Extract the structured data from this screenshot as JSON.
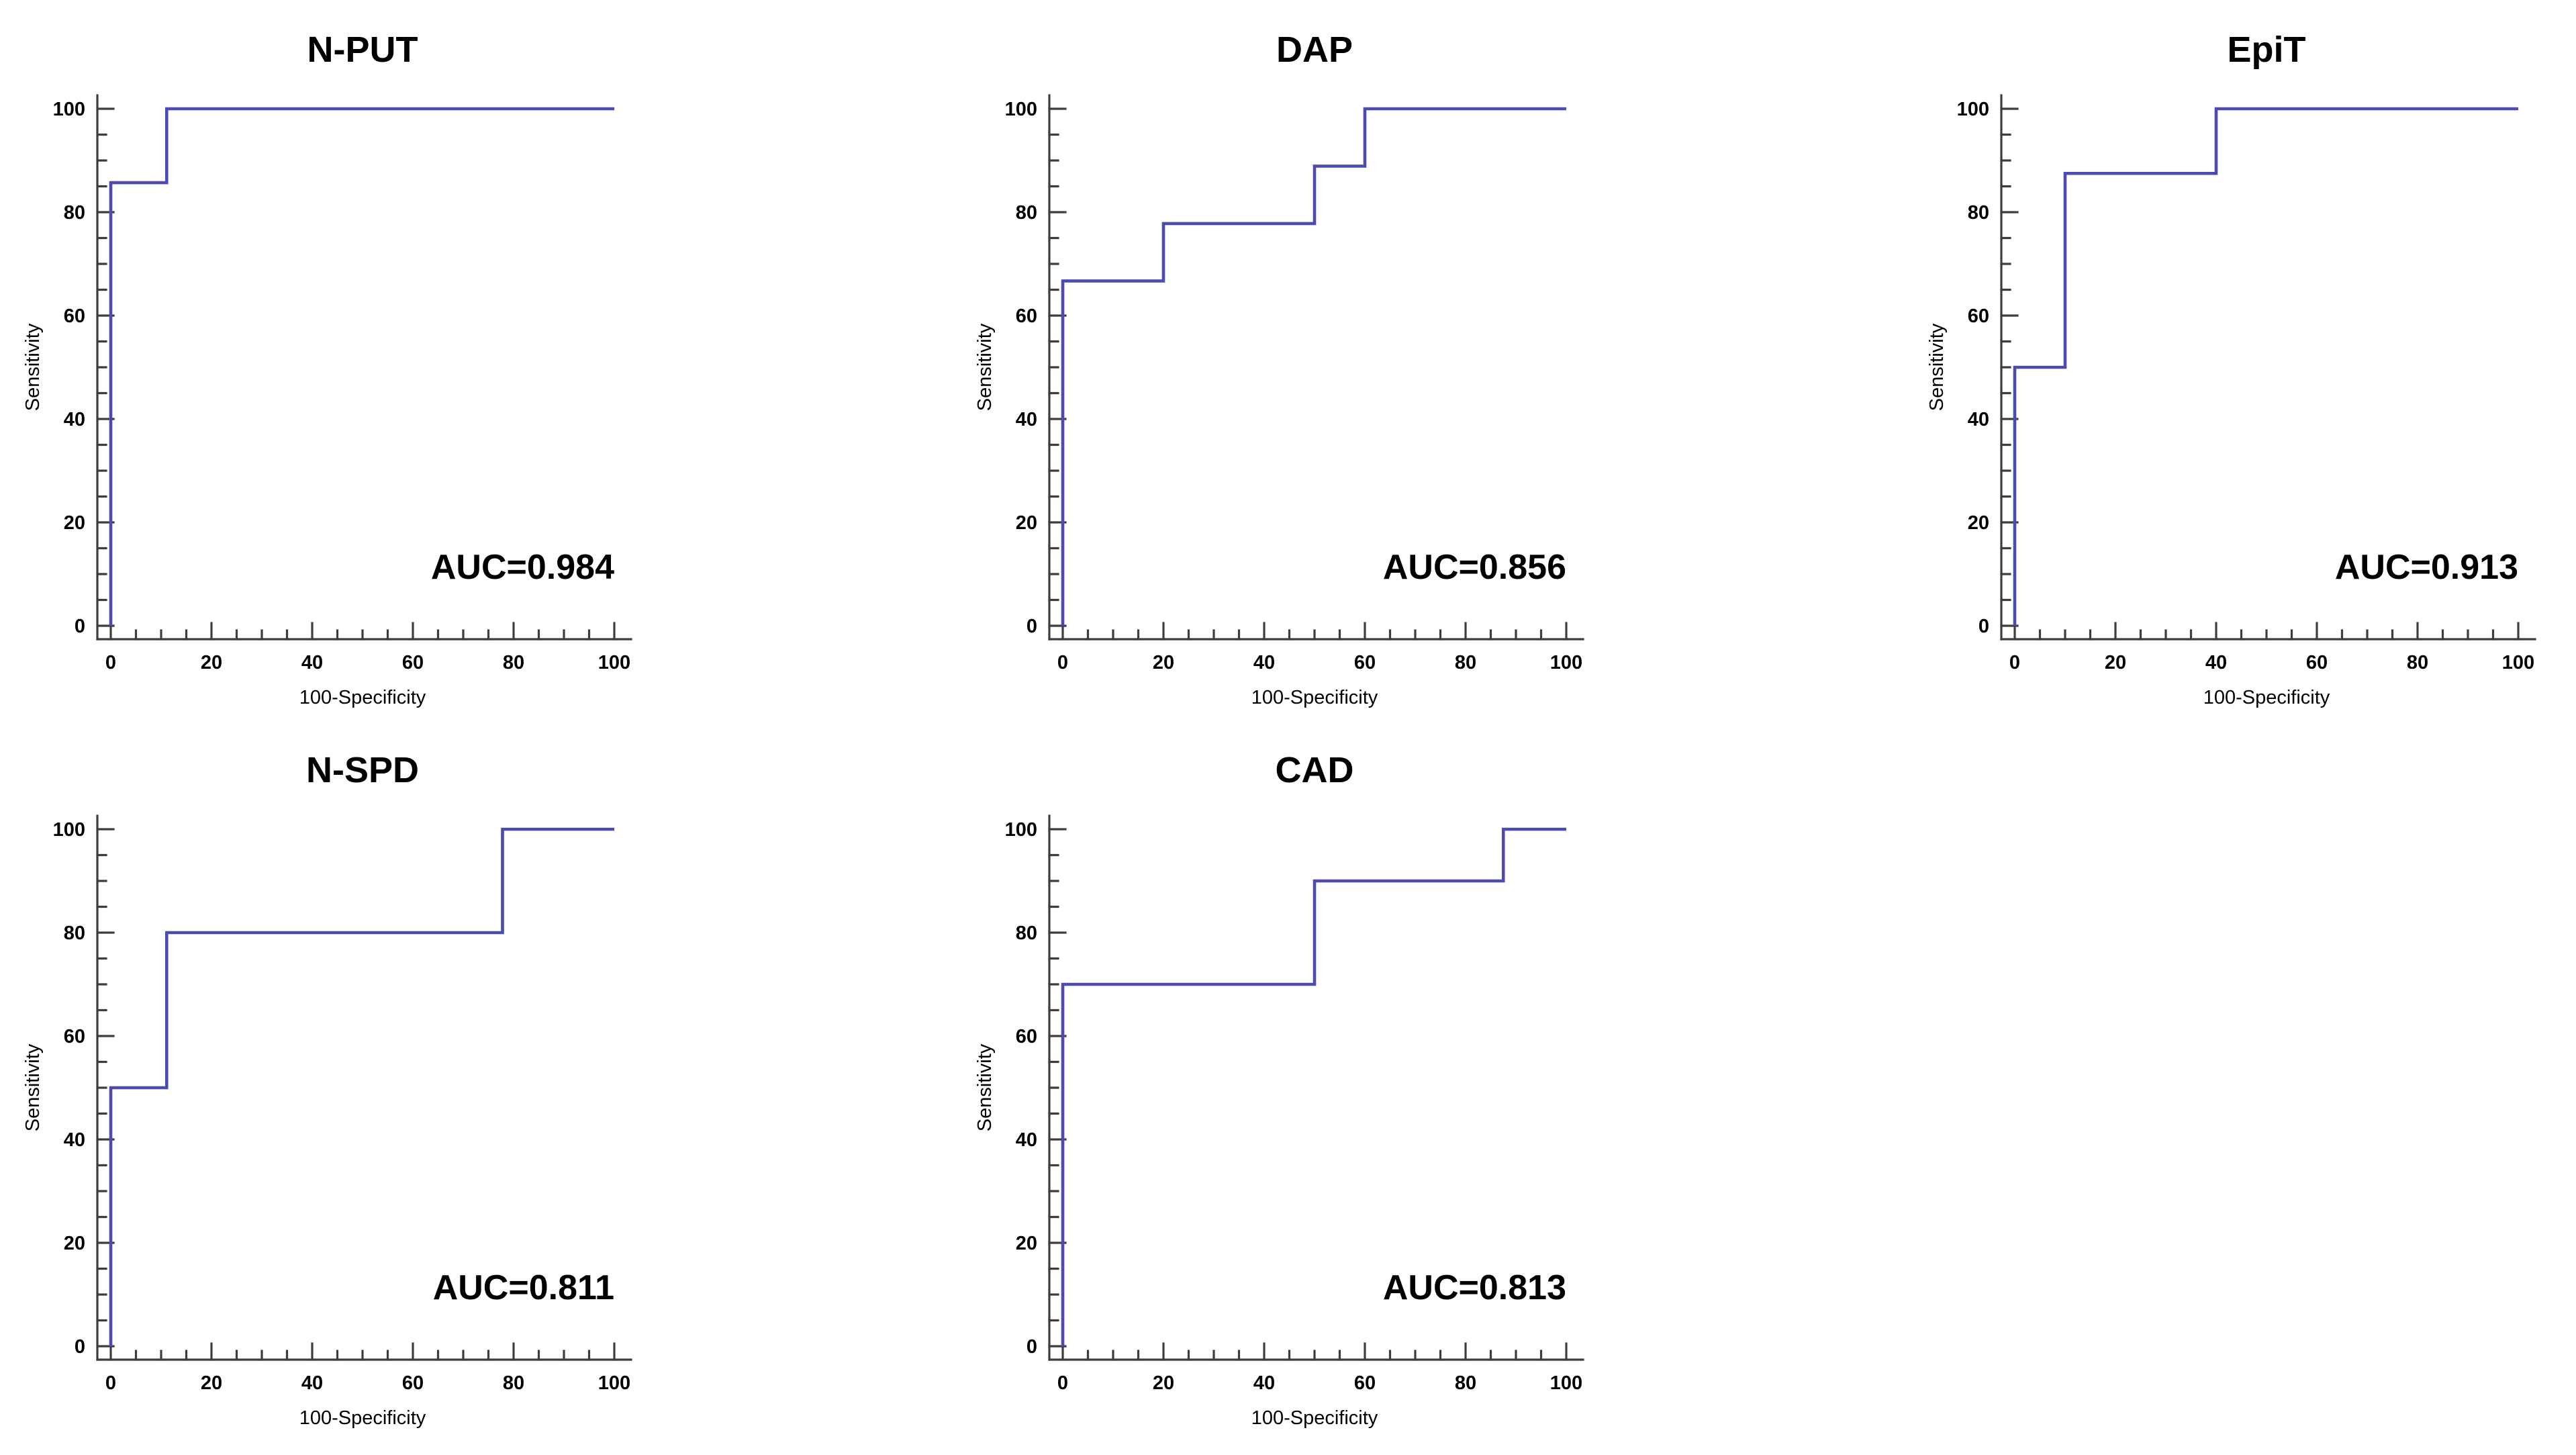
{
  "figure": {
    "description": "Five ROC curve panels",
    "colors": {
      "curve": "#4c4cae",
      "axis": "#3d3d3d",
      "text": "#000000",
      "background": "#ffffff"
    }
  },
  "chart_data": [
    {
      "type": "line",
      "subtype": "roc-step-curve",
      "title": "N-PUT",
      "xlabel": "100-Specificity",
      "ylabel": "Sensitivity",
      "xlim": [
        0,
        100
      ],
      "ylim": [
        0,
        100
      ],
      "x_ticks": [
        0,
        20,
        40,
        60,
        80,
        100
      ],
      "y_ticks": [
        0,
        20,
        40,
        60,
        80,
        100
      ],
      "minor_tick_step": 5,
      "grid": false,
      "legend_position": "none",
      "annotation": "AUC=0.984",
      "auc": 0.984,
      "series": [
        {
          "name": "ROC curve",
          "x": [
            0,
            0,
            11.1,
            11.1,
            100
          ],
          "y": [
            0,
            85.7,
            85.7,
            100,
            100
          ]
        }
      ]
    },
    {
      "type": "line",
      "subtype": "roc-step-curve",
      "title": "DAP",
      "xlabel": "100-Specificity",
      "ylabel": "Sensitivity",
      "xlim": [
        0,
        100
      ],
      "ylim": [
        0,
        100
      ],
      "x_ticks": [
        0,
        20,
        40,
        60,
        80,
        100
      ],
      "y_ticks": [
        0,
        20,
        40,
        60,
        80,
        100
      ],
      "minor_tick_step": 5,
      "grid": false,
      "legend_position": "none",
      "annotation": "AUC=0.856",
      "auc": 0.856,
      "series": [
        {
          "name": "ROC curve",
          "x": [
            0,
            0,
            20,
            20,
            50,
            50,
            60,
            60,
            100
          ],
          "y": [
            0,
            66.7,
            66.7,
            77.8,
            77.8,
            88.9,
            88.9,
            100,
            100
          ]
        }
      ]
    },
    {
      "type": "line",
      "subtype": "roc-step-curve",
      "title": "EpiT",
      "xlabel": "100-Specificity",
      "ylabel": "Sensitivity",
      "xlim": [
        0,
        100
      ],
      "ylim": [
        0,
        100
      ],
      "x_ticks": [
        0,
        20,
        40,
        60,
        80,
        100
      ],
      "y_ticks": [
        0,
        20,
        40,
        60,
        80,
        100
      ],
      "minor_tick_step": 5,
      "grid": false,
      "legend_position": "none",
      "annotation": "AUC=0.913",
      "auc": 0.913,
      "series": [
        {
          "name": "ROC curve",
          "x": [
            0,
            0,
            10,
            10,
            40,
            40,
            100
          ],
          "y": [
            0,
            50,
            50,
            87.5,
            87.5,
            100,
            100
          ]
        }
      ]
    },
    {
      "type": "line",
      "subtype": "roc-step-curve",
      "title": "N-SPD",
      "xlabel": "100-Specificity",
      "ylabel": "Sensitivity",
      "xlim": [
        0,
        100
      ],
      "ylim": [
        0,
        100
      ],
      "x_ticks": [
        0,
        20,
        40,
        60,
        80,
        100
      ],
      "y_ticks": [
        0,
        20,
        40,
        60,
        80,
        100
      ],
      "minor_tick_step": 5,
      "grid": false,
      "legend_position": "none",
      "annotation": "AUC=0.811",
      "auc": 0.811,
      "series": [
        {
          "name": "ROC curve",
          "x": [
            0,
            0,
            11.1,
            11.1,
            77.8,
            77.8,
            100
          ],
          "y": [
            0,
            50,
            50,
            80,
            80,
            100,
            100
          ]
        }
      ]
    },
    {
      "type": "line",
      "subtype": "roc-step-curve",
      "title": "CAD",
      "xlabel": "100-Specificity",
      "ylabel": "Sensitivity",
      "xlim": [
        0,
        100
      ],
      "ylim": [
        0,
        100
      ],
      "x_ticks": [
        0,
        20,
        40,
        60,
        80,
        100
      ],
      "y_ticks": [
        0,
        20,
        40,
        60,
        80,
        100
      ],
      "minor_tick_step": 5,
      "grid": false,
      "legend_position": "none",
      "annotation": "AUC=0.813",
      "auc": 0.813,
      "series": [
        {
          "name": "ROC curve",
          "x": [
            0,
            0,
            50,
            50,
            87.5,
            87.5,
            100
          ],
          "y": [
            0,
            70,
            70,
            90,
            90,
            100,
            100
          ]
        }
      ]
    }
  ]
}
